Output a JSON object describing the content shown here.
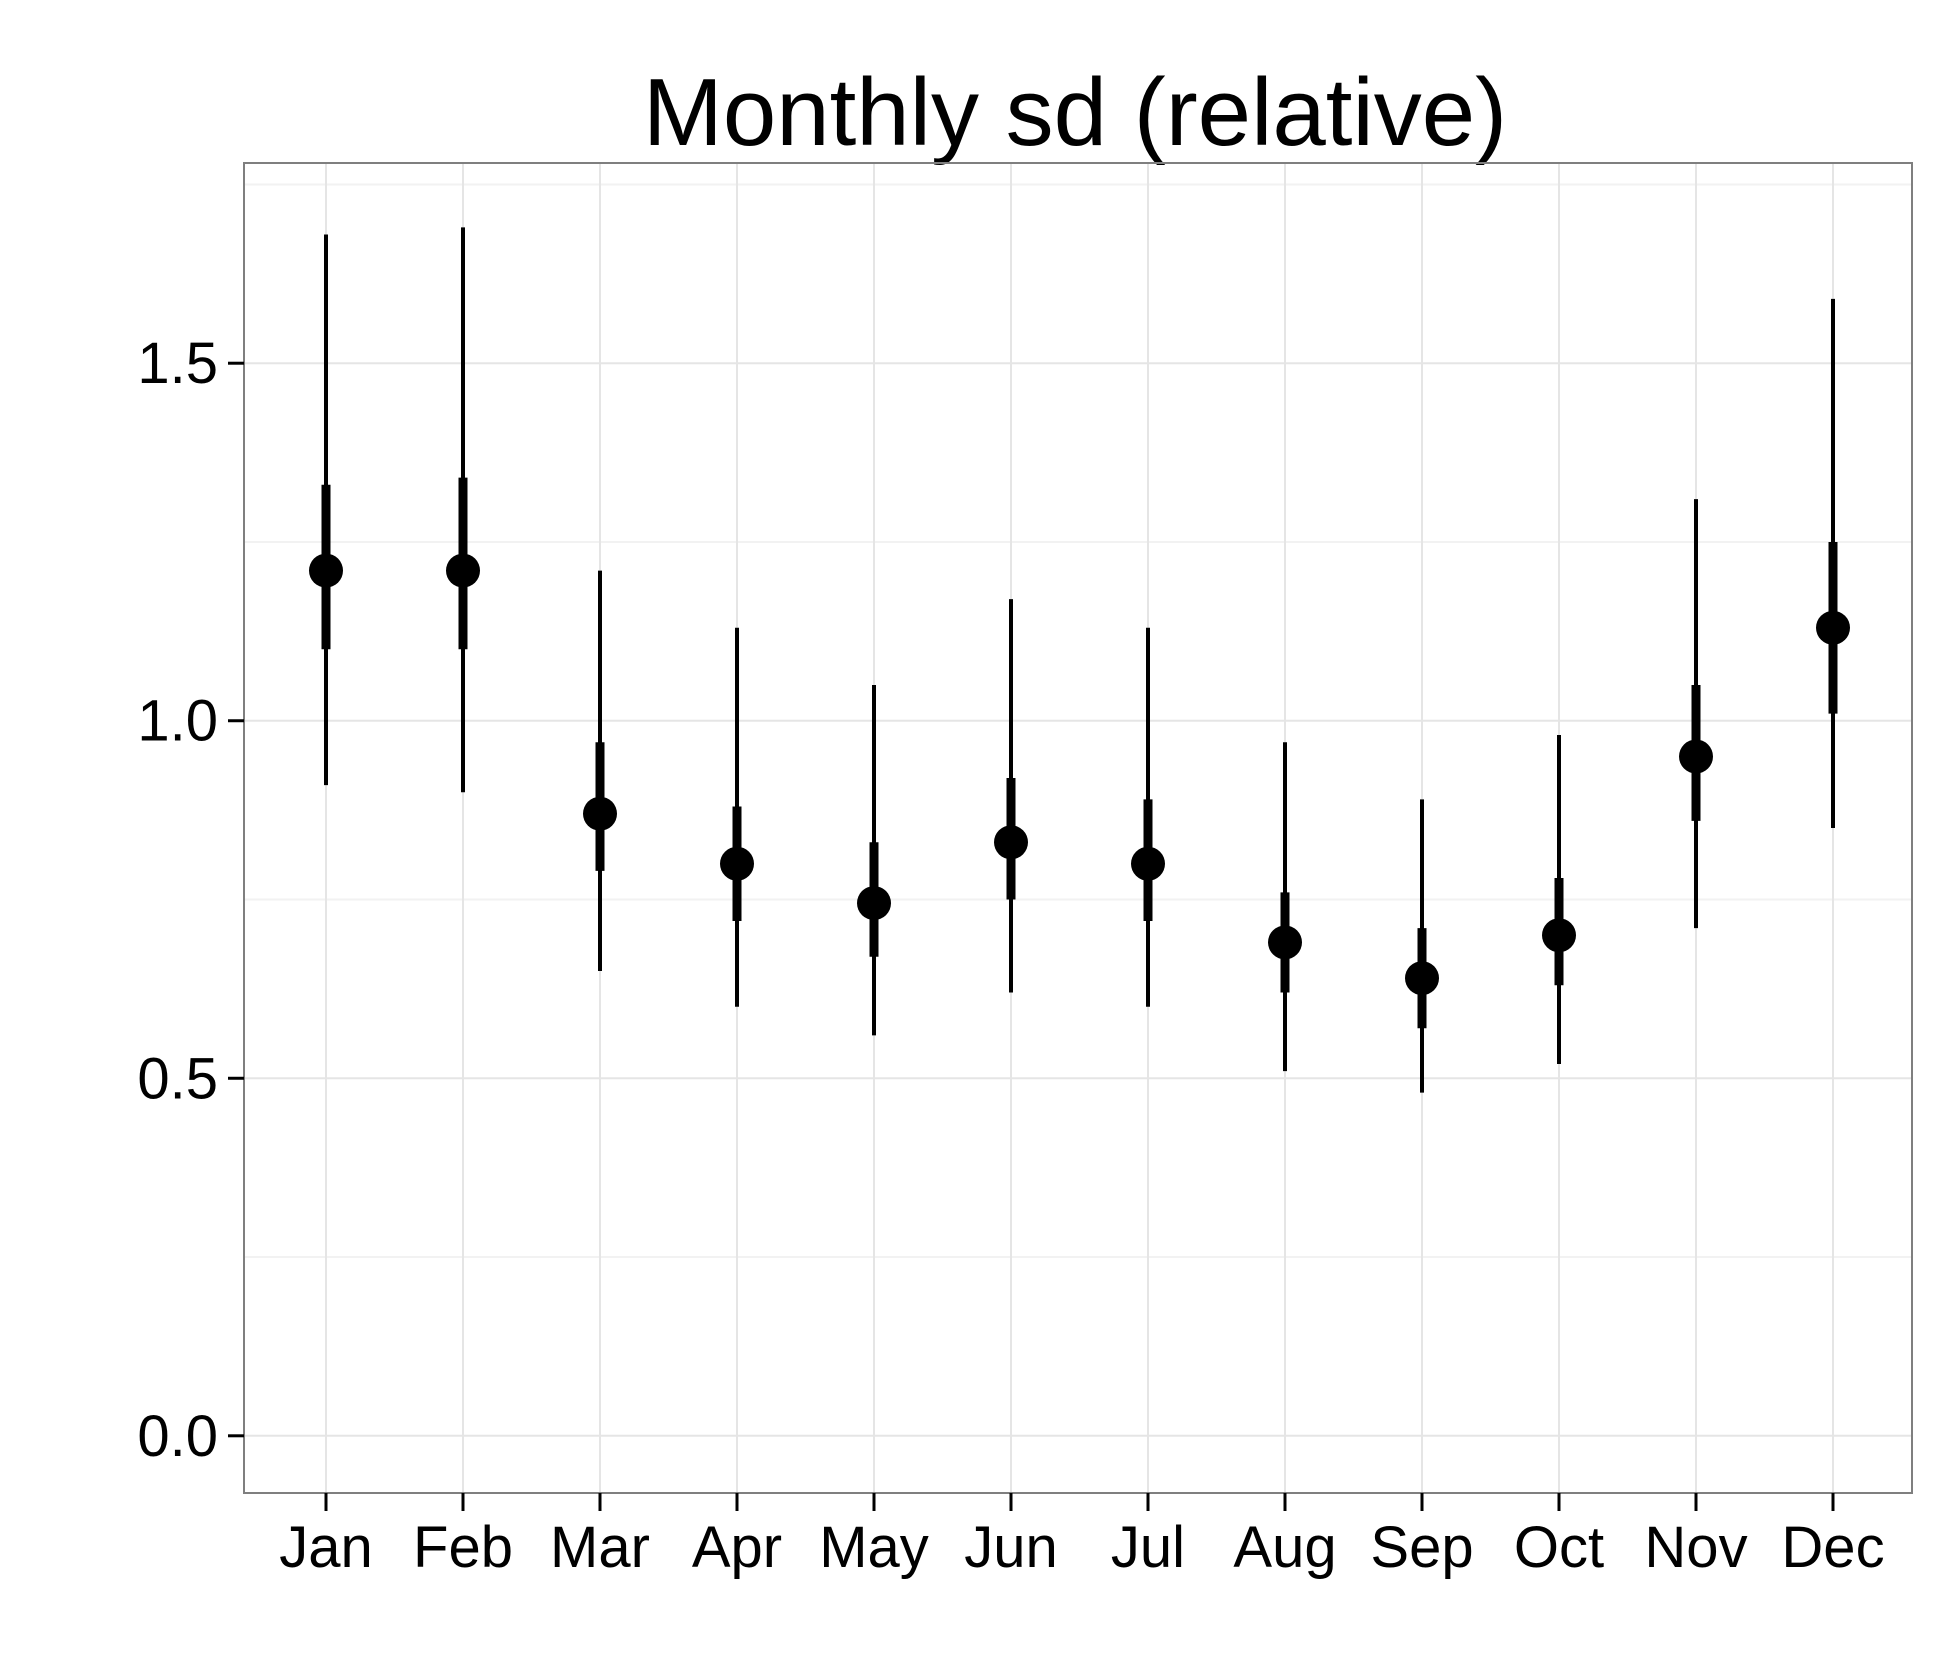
{
  "chart_data": {
    "type": "scatter",
    "title": "Monthly sd (relative)",
    "xlabel": "",
    "ylabel": "",
    "ylim": [
      -0.08,
      1.78
    ],
    "grid": true,
    "legend": "none",
    "yticks": [
      0.0,
      0.5,
      1.0,
      1.5
    ],
    "ytick_labels": [
      "0.0",
      "0.5",
      "1.0",
      "1.5"
    ],
    "categories": [
      "Jan",
      "Feb",
      "Mar",
      "Apr",
      "May",
      "Jun",
      "Jul",
      "Aug",
      "Sep",
      "Oct",
      "Nov",
      "Dec"
    ],
    "series": [
      {
        "values": [
          1.21,
          1.21,
          0.87,
          0.8,
          0.745,
          0.83,
          0.8,
          0.69,
          0.64,
          0.7,
          0.95,
          1.13
        ],
        "inner_low": [
          1.1,
          1.1,
          0.79,
          0.72,
          0.67,
          0.75,
          0.72,
          0.62,
          0.57,
          0.63,
          0.86,
          1.01
        ],
        "inner_high": [
          1.33,
          1.34,
          0.97,
          0.88,
          0.83,
          0.92,
          0.89,
          0.76,
          0.71,
          0.78,
          1.05,
          1.25
        ],
        "outer_low": [
          0.91,
          0.9,
          0.65,
          0.6,
          0.56,
          0.62,
          0.6,
          0.51,
          0.48,
          0.52,
          0.71,
          0.85
        ],
        "outer_high": [
          1.68,
          1.69,
          1.21,
          1.13,
          1.05,
          1.17,
          1.13,
          0.97,
          0.89,
          0.98,
          1.31,
          1.59
        ]
      }
    ],
    "colors": {
      "points": "#000000",
      "grid": "#e5e5e5",
      "panel_border": "#7f7f7f"
    }
  }
}
